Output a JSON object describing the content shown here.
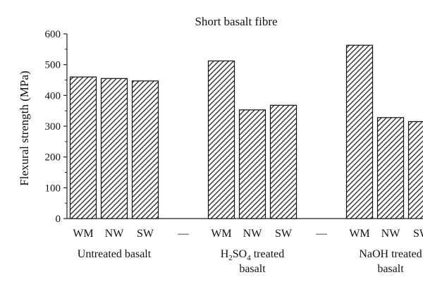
{
  "chart_data": {
    "type": "bar",
    "title": "Short basalt fibre",
    "ylabel": "Flexural strength (MPa)",
    "ylim": [
      0,
      600
    ],
    "yticks": [
      0,
      100,
      200,
      300,
      400,
      500,
      600
    ],
    "grid": false,
    "legend": "none",
    "bar_pattern": "diagonal-hatch",
    "separator_label": "—",
    "groups": [
      {
        "label_lines": [
          "Untreated basalt"
        ],
        "categories": [
          "WM",
          "NW",
          "SW"
        ],
        "values": [
          460,
          455,
          447
        ]
      },
      {
        "label_lines": [
          "H2SO4 treated",
          "basalt"
        ],
        "label_rich": {
          "pre": "H",
          "sub1": "2",
          "mid": "SO",
          "sub2": "4",
          "post": " treated"
        },
        "categories": [
          "WM",
          "NW",
          "SW"
        ],
        "values": [
          512,
          353,
          368
        ]
      },
      {
        "label_lines": [
          "NaOH treated",
          "basalt"
        ],
        "categories": [
          "WM",
          "NW",
          "SW"
        ],
        "values": [
          563,
          328,
          315
        ]
      }
    ]
  }
}
